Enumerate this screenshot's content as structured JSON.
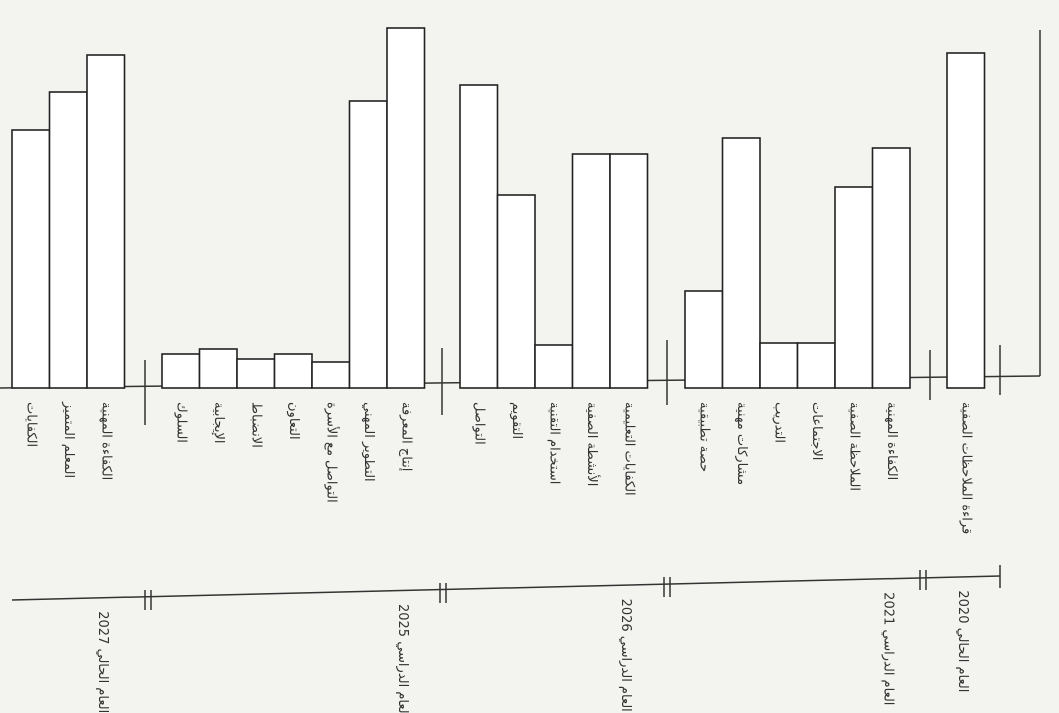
{
  "chart_data": {
    "type": "bar",
    "color": "#ffffff",
    "ylim": [
      0,
      360
    ],
    "groups": [
      {
        "label": "العام الحالي 2027",
        "categories": [
          "الكفايات",
          "المعلم المتميز",
          "الكفاءة المهنية"
        ],
        "values": [
          258,
          296,
          333
        ]
      },
      {
        "label": "العام الدراسي 2025",
        "categories": [
          "السلوك",
          "الإيجابية",
          "الانضباط",
          "التعاون",
          "التواصل مع الأسرة",
          "التطوير المهني",
          "إنتاج المعرفة"
        ],
        "values": [
          34,
          39,
          29,
          34,
          26,
          287,
          360
        ]
      },
      {
        "label": "العام الدراسي 2026",
        "categories": [
          "التواصل",
          "التقويم",
          "استخدام التقنية",
          "الأنشطة الصفية",
          "الكفايات التعليمية"
        ],
        "values": [
          303,
          193,
          43,
          234,
          234
        ]
      },
      {
        "label": "العام الدراسي 2021",
        "categories": [
          "حصة تطبيقية",
          "مشاركات مهنية",
          "التدريب",
          "الاجتماعات",
          "الملاحظة الصفية",
          "الكفاءة المهنية"
        ],
        "values": [
          97,
          250,
          45,
          45,
          201,
          240
        ]
      },
      {
        "label": "العام الحالي 2020",
        "categories": [
          "قراءة الملاحظات الصفية"
        ],
        "values": [
          335
        ]
      }
    ]
  }
}
